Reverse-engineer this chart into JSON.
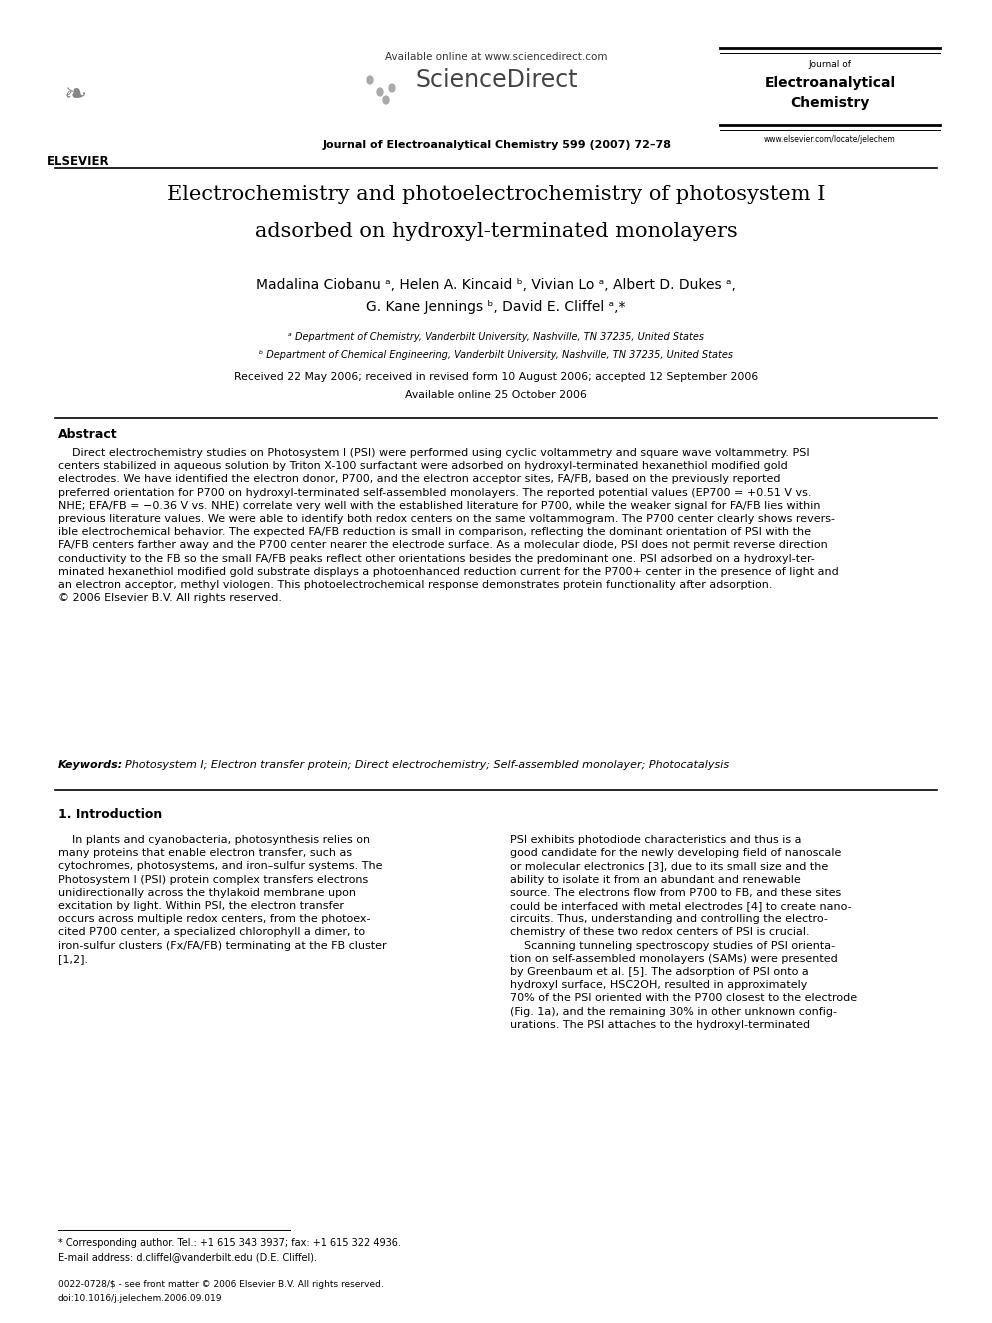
{
  "bg_color": "#ffffff",
  "page_width": 9.92,
  "page_height": 13.23,
  "dpi": 100,
  "header": {
    "available_online": "Available online at www.sciencedirect.com",
    "sciencedirect": "ScienceDirect",
    "journal_line": "Journal of Electroanalytical Chemistry 599 (2007) 72–78",
    "journal_name_line1": "Journal of",
    "journal_name_line2": "Electroanalytical",
    "journal_name_line3": "Chemistry",
    "journal_url": "www.elsevier.com/locate/jelechem",
    "elsevier_text": "ELSEVIER"
  },
  "title_line1": "Electrochemistry and photoelectrochemistry of photosystem I",
  "title_line2": "adsorbed on hydroxyl-terminated monolayers",
  "authors_line1": "Madalina Ciobanu ᵃ, Helen A. Kincaid ᵇ, Vivian Lo ᵃ, Albert D. Dukes ᵃ,",
  "authors_line2": "G. Kane Jennings ᵇ, David E. Cliffel ᵃ,*",
  "affil_a": "ᵃ Department of Chemistry, Vanderbilt University, Nashville, TN 37235, United States",
  "affil_b": "ᵇ Department of Chemical Engineering, Vanderbilt University, Nashville, TN 37235, United States",
  "received": "Received 22 May 2006; received in revised form 10 August 2006; accepted 12 September 2006",
  "available_online2": "Available online 25 October 2006",
  "abstract_title": "Abstract",
  "abstract_para": "    Direct electrochemistry studies on Photosystem I (PSI) were performed using cyclic voltammetry and square wave voltammetry. PSI\ncenters stabilized in aqueous solution by Triton X-100 surfactant were adsorbed on hydroxyl-terminated hexanethiol modified gold\nelectrodes. We have identified the electron donor, P700, and the electron acceptor sites, FA/FB, based on the previously reported\npreferred orientation for P700 on hydroxyl-terminated self-assembled monolayers. The reported potential values (EP700 = +0.51 V vs.\nNHE; EFA/FB = −0.36 V vs. NHE) correlate very well with the established literature for P700, while the weaker signal for FA/FB lies within\nprevious literature values. We were able to identify both redox centers on the same voltammogram. The P700 center clearly shows revers-\nible electrochemical behavior. The expected FA/FB reduction is small in comparison, reflecting the dominant orientation of PSI with the\nFA/FB centers farther away and the P700 center nearer the electrode surface. As a molecular diode, PSI does not permit reverse direction\nconductivity to the FB so the small FA/FB peaks reflect other orientations besides the predominant one. PSI adsorbed on a hydroxyl-ter-\nminated hexanethiol modified gold substrate displays a photoenhanced reduction current for the P700+ center in the presence of light and\nan electron acceptor, methyl viologen. This photoelectrochemical response demonstrates protein functionality after adsorption.\n© 2006 Elsevier B.V. All rights reserved.",
  "keywords_label": "Keywords:",
  "keywords_text": "  Photosystem I; Electron transfer protein; Direct electrochemistry; Self-assembled monolayer; Photocatalysis",
  "section1_title": "1. Introduction",
  "col1_text": "    In plants and cyanobacteria, photosynthesis relies on\nmany proteins that enable electron transfer, such as\ncytochromes, photosystems, and iron–sulfur systems. The\nPhotosystem I (PSI) protein complex transfers electrons\nunidirectionally across the thylakoid membrane upon\nexcitation by light. Within PSI, the electron transfer\noccurs across multiple redox centers, from the photoex-\ncited P700 center, a specialized chlorophyll a dimer, to\niron-sulfur clusters (Fx/FA/FB) terminating at the FB cluster\n[1,2].",
  "col2_text": "PSI exhibits photodiode characteristics and thus is a\ngood candidate for the newly developing field of nanoscale\nor molecular electronics [3], due to its small size and the\nability to isolate it from an abundant and renewable\nsource. The electrons flow from P700 to FB, and these sites\ncould be interfaced with metal electrodes [4] to create nano-\ncircuits. Thus, understanding and controlling the electro-\nchemistry of these two redox centers of PSI is crucial.\n    Scanning tunneling spectroscopy studies of PSI orienta-\ntion on self-assembled monolayers (SAMs) were presented\nby Greenbaum et al. [5]. The adsorption of PSI onto a\nhydroxyl surface, HSC2OH, resulted in approximately\n70% of the PSI oriented with the P700 closest to the electrode\n(Fig. 1a), and the remaining 30% in other unknown config-\nurations. The PSI attaches to the hydroxyl-terminated",
  "footnote_line": "* Corresponding author. Tel.: +1 615 343 3937; fax: +1 615 322 4936.",
  "footnote_email": "E-mail address: d.cliffel@vanderbilt.edu (D.E. Cliffel).",
  "footer_issn": "0022-0728/$ - see front matter © 2006 Elsevier B.V. All rights reserved.",
  "footer_doi": "doi:10.1016/j.jelechem.2006.09.019"
}
